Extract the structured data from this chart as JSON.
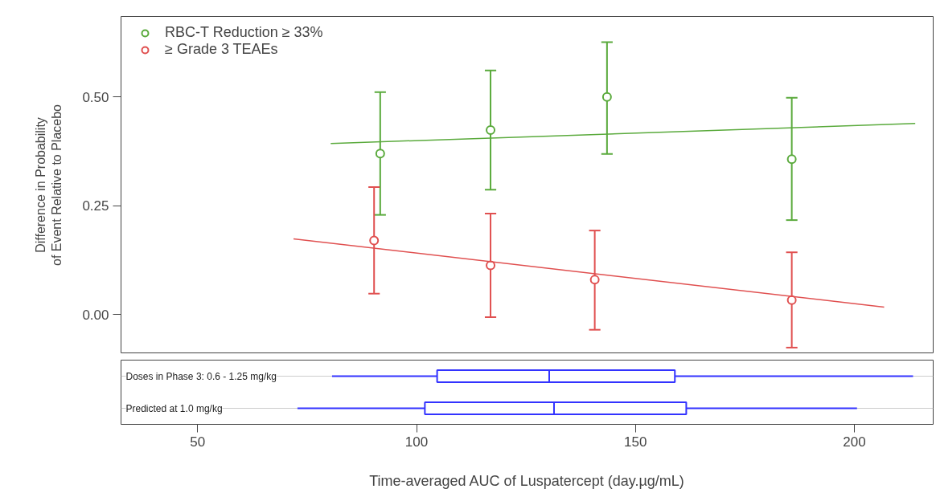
{
  "chart_data": [
    {
      "type": "scatter",
      "ylabel": "Difference in Probability\nof Event Relative to Placebo",
      "xlim": [
        32.5,
        218
      ],
      "ylim": [
        -0.09,
        0.685
      ],
      "xticks": [
        50,
        100,
        150,
        200
      ],
      "yticks": [
        {
          "value": 0,
          "label": "0.00"
        },
        {
          "value": 0.25,
          "label": "0.25"
        },
        {
          "value": 0.5,
          "label": "0.50"
        }
      ],
      "tick_labels": "y",
      "legend": "top left",
      "marker": "circle",
      "series": [
        {
          "name": "RBC-T Reduction ≥ 33%",
          "color": "#5aaa3c",
          "x": [
            91.7,
            116.9,
            143.5,
            185.7
          ],
          "values": [
            0.37,
            0.424,
            0.5,
            0.357
          ],
          "errors": [
            [
              0.229,
              0.511
            ],
            [
              0.287,
              0.561
            ],
            [
              0.369,
              0.626
            ],
            [
              0.217,
              0.498
            ]
          ]
        },
        {
          "name": "≥ Grade 3 TEAEs",
          "color": "#e05050",
          "x": [
            90.3,
            116.9,
            140.7,
            185.7
          ],
          "values": [
            0.17,
            0.113,
            0.08,
            0.033
          ],
          "errors": [
            [
              0.048,
              0.293
            ],
            [
              -0.006,
              0.232
            ],
            [
              -0.035,
              0.193
            ],
            [
              -0.076,
              0.143
            ]
          ]
        },
        {
          "type": "line",
          "marker": "none",
          "color": "#5aaa3c",
          "x": [
            80.4,
            213.9
          ],
          "values": [
            0.393,
            0.439
          ]
        },
        {
          "type": "line",
          "marker": "none",
          "color": "#e05050",
          "x": [
            71.9,
            206.8
          ],
          "values": [
            0.174,
            0.017
          ]
        }
      ]
    },
    {
      "type": "box",
      "orientation": "horizontal",
      "xlabel": "Time-averaged AUC of Luspatercept (day.µg/mL)",
      "categories": [
        "Doses in Phase 3: 0.6 - 1.25 mg/kg",
        "Predicted at 1.0 mg/kg"
      ],
      "xlim": [
        32.5,
        218
      ],
      "xticks": [
        50,
        100,
        150,
        200
      ],
      "tick_labels": "x",
      "grid": "y",
      "series": [
        {
          "color": "#3333ff",
          "boxes": [
            {
              "low": 80.7,
              "q1": 104.7,
              "median": 130.3,
              "q3": 159.0,
              "high": 213.4
            },
            {
              "low": 72.8,
              "q1": 101.9,
              "median": 131.4,
              "q3": 161.6,
              "high": 200.6
            }
          ]
        }
      ]
    }
  ]
}
